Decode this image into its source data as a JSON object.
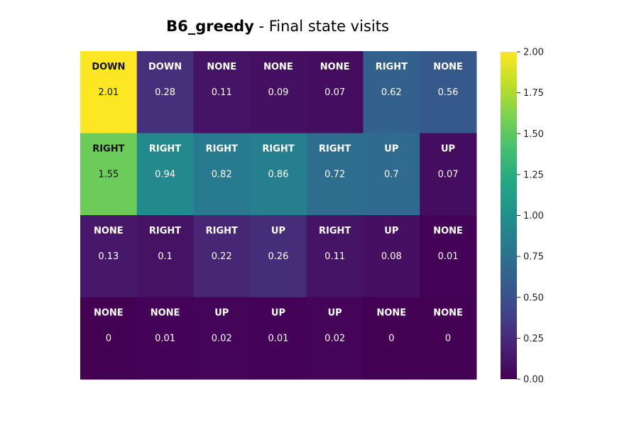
{
  "chart_data": {
    "type": "heatmap",
    "title_bold": "B6_greedy",
    "title_rest": " - Final state visits",
    "rows": 4,
    "cols": 7,
    "actions": [
      [
        "DOWN",
        "DOWN",
        "NONE",
        "NONE",
        "NONE",
        "RIGHT",
        "NONE"
      ],
      [
        "RIGHT",
        "RIGHT",
        "RIGHT",
        "RIGHT",
        "RIGHT",
        "UP",
        "UP"
      ],
      [
        "NONE",
        "RIGHT",
        "RIGHT",
        "UP",
        "RIGHT",
        "UP",
        "NONE"
      ],
      [
        "NONE",
        "NONE",
        "UP",
        "UP",
        "UP",
        "NONE",
        "NONE"
      ]
    ],
    "value_labels": [
      [
        "2.01",
        "0.28",
        "0.11",
        "0.09",
        "0.07",
        "0.62",
        "0.56"
      ],
      [
        "1.55",
        "0.94",
        "0.82",
        "0.86",
        "0.72",
        "0.7",
        "0.07"
      ],
      [
        "0.13",
        "0.1",
        "0.22",
        "0.26",
        "0.11",
        "0.08",
        "0.01"
      ],
      [
        "0",
        "0.01",
        "0.02",
        "0.01",
        "0.02",
        "0",
        "0"
      ]
    ],
    "values": [
      [
        2.01,
        0.28,
        0.11,
        0.09,
        0.07,
        0.62,
        0.56
      ],
      [
        1.55,
        0.94,
        0.82,
        0.86,
        0.72,
        0.7,
        0.07
      ],
      [
        0.13,
        0.1,
        0.22,
        0.26,
        0.11,
        0.08,
        0.01
      ],
      [
        0,
        0.01,
        0.02,
        0.01,
        0.02,
        0,
        0
      ]
    ],
    "colorscale": "viridis",
    "vmin": 0,
    "vmax": 2.0,
    "colorbar_ticks": [
      "0.00",
      "0.25",
      "0.50",
      "0.75",
      "1.00",
      "1.25",
      "1.50",
      "1.75",
      "2.00"
    ],
    "colorbar_tick_values": [
      0,
      0.25,
      0.5,
      0.75,
      1.0,
      1.25,
      1.5,
      1.75,
      2.0
    ],
    "grid": false
  }
}
